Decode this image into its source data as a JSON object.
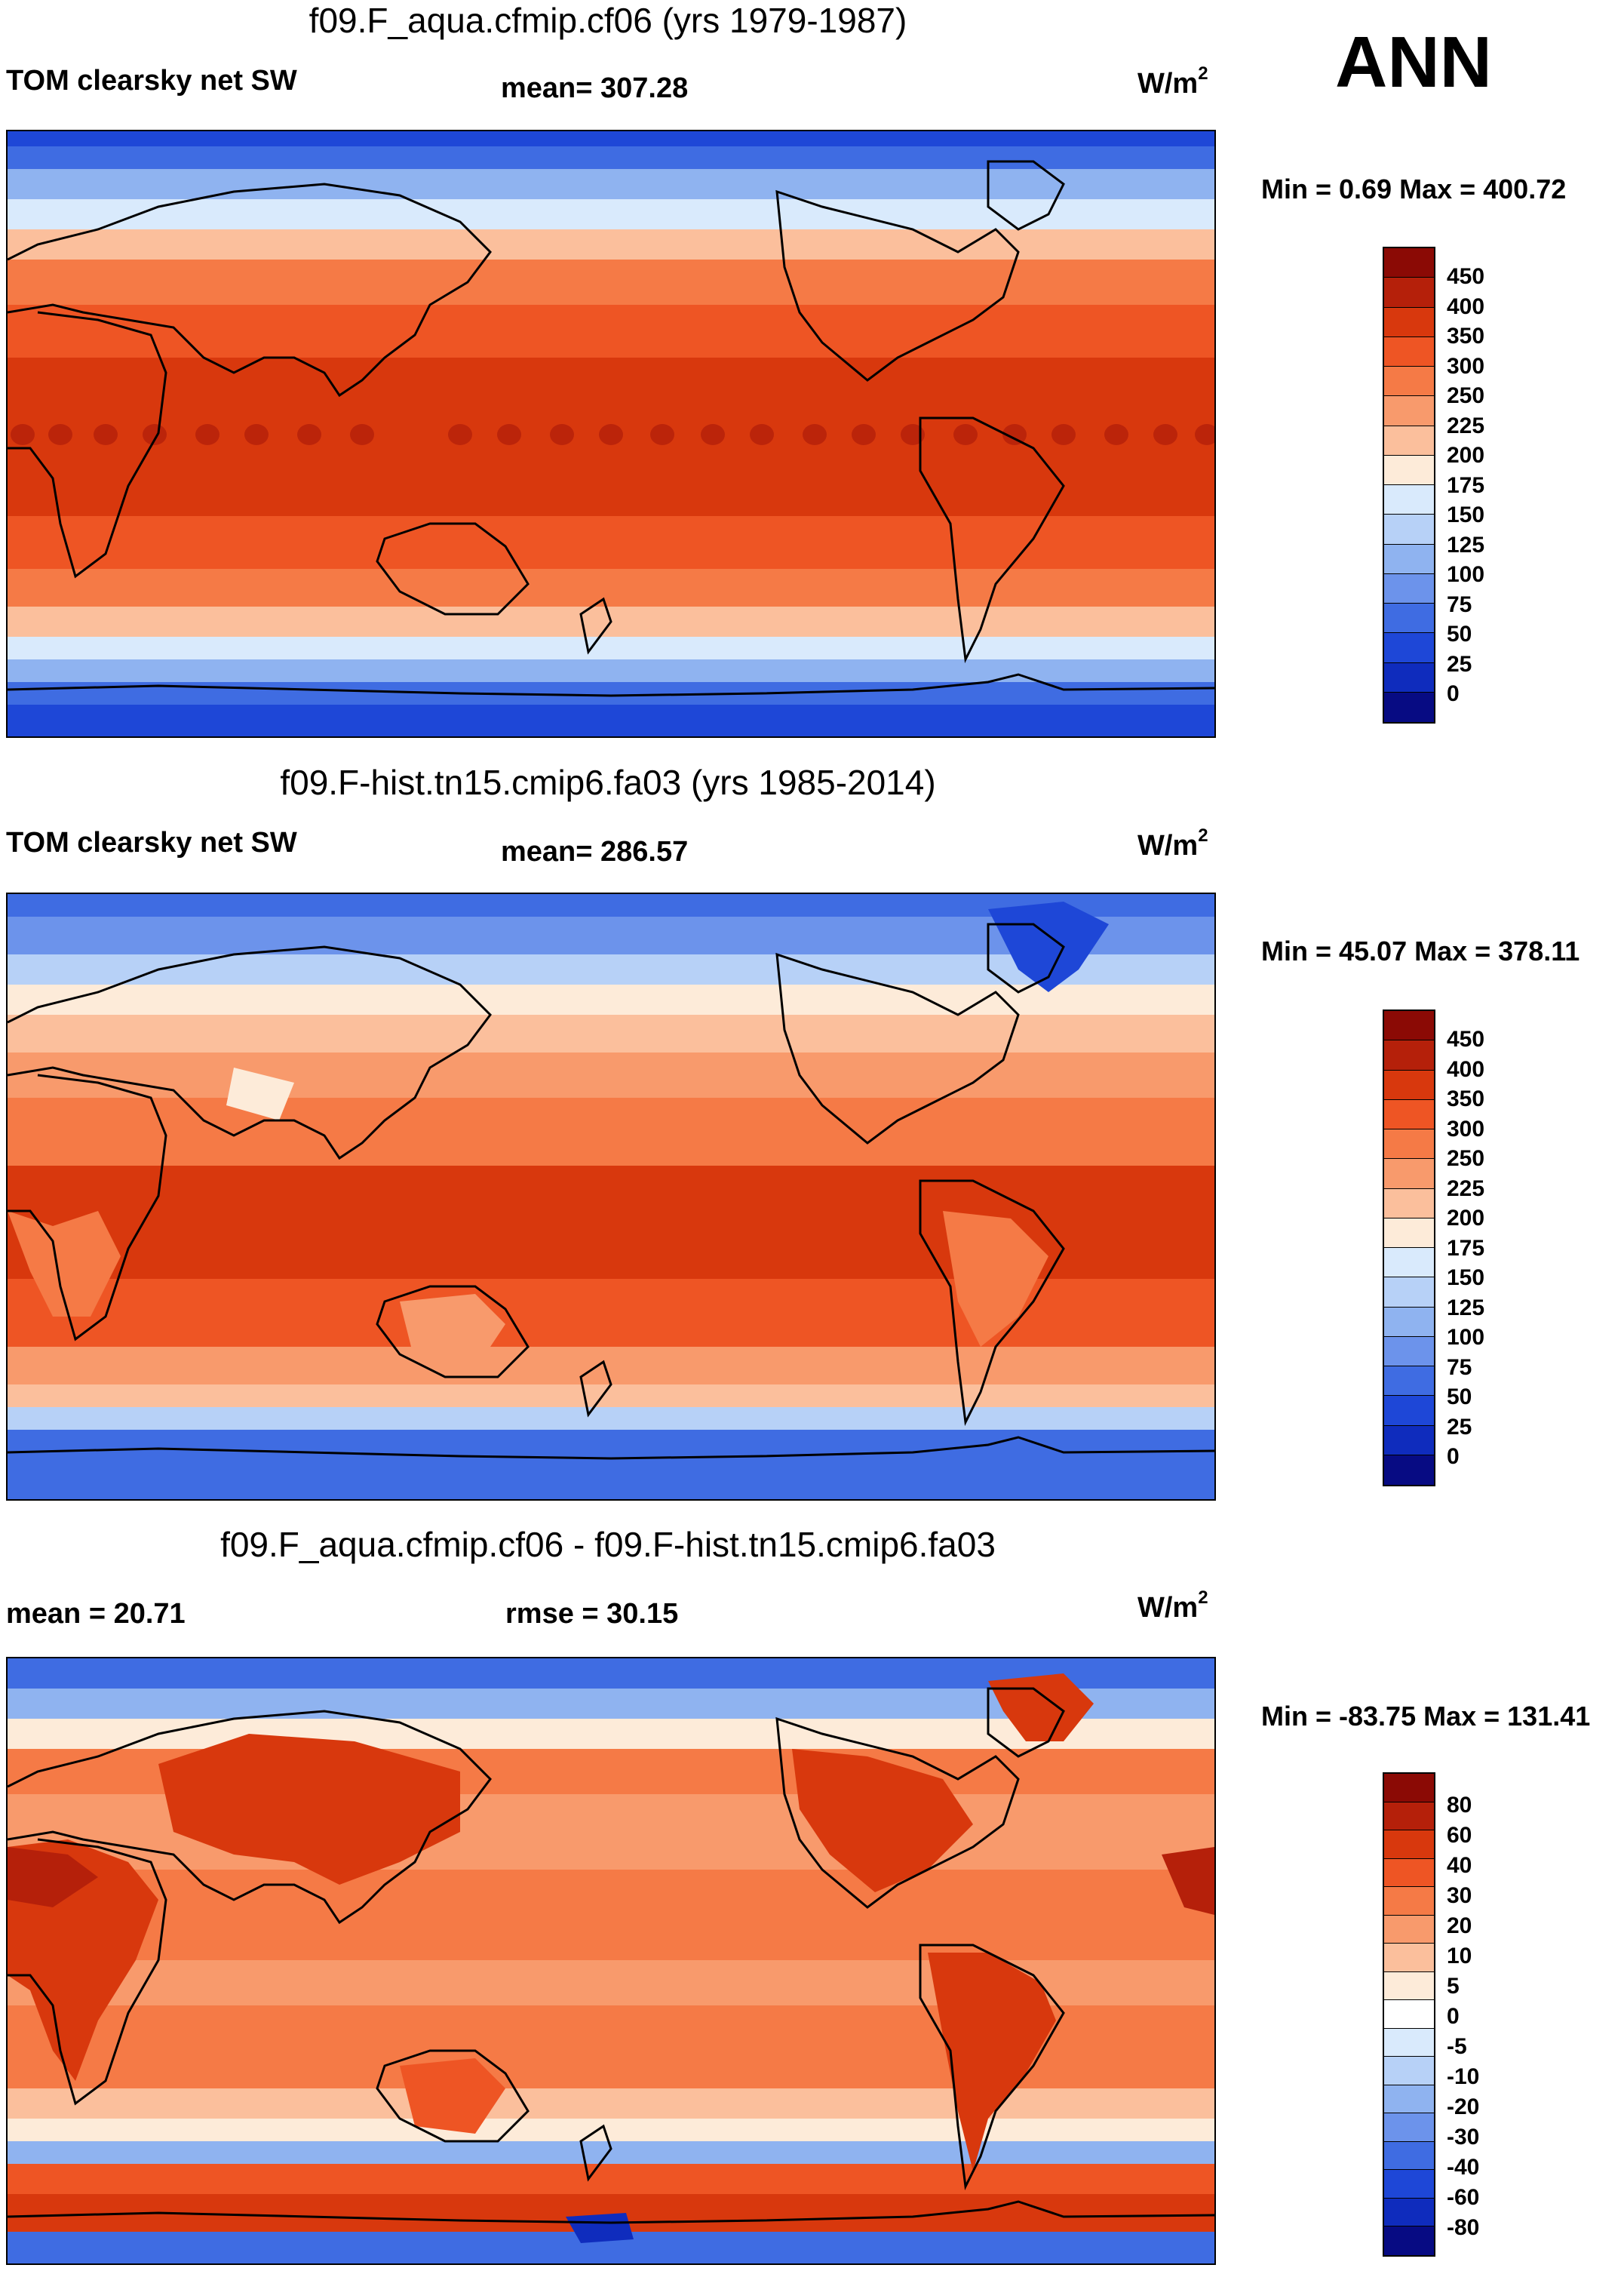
{
  "season": "ANN",
  "units_prefix": "W/m",
  "units_exp": "2",
  "panels": [
    {
      "title": "f09.F_aqua.cfmip.cf06 (yrs 1979-1987)",
      "left_label": "TOM clearsky net SW",
      "center_label": "mean= 307.28",
      "minmax": "Min =   0.69 Max = 400.72"
    },
    {
      "title": "f09.F-hist.tn15.cmip6.fa03 (yrs 1985-2014)",
      "left_label": "TOM clearsky net SW",
      "center_label": "mean= 286.57",
      "minmax": "Min =  45.07 Max = 378.11"
    },
    {
      "title": "f09.F_aqua.cfmip.cf06 - f09.F-hist.tn15.cmip6.fa03",
      "left_label": "mean =  20.71",
      "center_label": "rmse =  30.15",
      "minmax": "Min = -83.75 Max = 131.41"
    }
  ],
  "colors": {
    "abs_scale": [
      "#8b0a05",
      "#b5200a",
      "#d8380d",
      "#ee5524",
      "#f57a46",
      "#f89a6c",
      "#fbbf9c",
      "#fdebd9",
      "#d9eafc",
      "#b7d1f7",
      "#8fb3f0",
      "#6c93eb",
      "#3f6ce2",
      "#1e47d7",
      "#0f2cbd",
      "#070b83"
    ],
    "diff_scale": [
      "#8b0a05",
      "#b5200a",
      "#d8380d",
      "#ee5524",
      "#f57a46",
      "#f89a6c",
      "#fbbf9c",
      "#fdebd9",
      "#ffffff",
      "#d9eafc",
      "#b7d1f7",
      "#8fb3f0",
      "#6c93eb",
      "#3f6ce2",
      "#1e47d7",
      "#0f2cbd",
      "#070b83"
    ]
  },
  "chart_data": [
    {
      "type": "heatmap",
      "title": "f09.F_aqua.cfmip.cf06 (yrs 1979-1987)",
      "variable": "TOM clearsky net SW",
      "units": "W/m2",
      "mean": 307.28,
      "min": 0.69,
      "max": 400.72,
      "colorbar_levels": [
        450,
        400,
        350,
        300,
        250,
        225,
        200,
        175,
        150,
        125,
        100,
        75,
        50,
        25,
        0
      ],
      "zonal_profile": {
        "lat": [
          90,
          75,
          60,
          45,
          30,
          15,
          0,
          -15,
          -30,
          -45,
          -60,
          -75,
          -90
        ],
        "value": [
          10,
          90,
          170,
          245,
          310,
          355,
          370,
          355,
          310,
          245,
          170,
          90,
          10
        ]
      }
    },
    {
      "type": "heatmap",
      "title": "f09.F-hist.tn15.cmip6.fa03 (yrs 1985-2014)",
      "variable": "TOM clearsky net SW",
      "units": "W/m2",
      "mean": 286.57,
      "min": 45.07,
      "max": 378.11,
      "colorbar_levels": [
        450,
        400,
        350,
        300,
        250,
        225,
        200,
        175,
        150,
        125,
        100,
        75,
        50,
        25,
        0
      ],
      "zonal_profile": {
        "lat": [
          90,
          75,
          60,
          45,
          30,
          15,
          0,
          -15,
          -30,
          -45,
          -60,
          -75,
          -90
        ],
        "value": [
          60,
          110,
          160,
          230,
          290,
          335,
          350,
          335,
          290,
          230,
          140,
          75,
          50
        ]
      }
    },
    {
      "type": "heatmap",
      "title": "f09.F_aqua.cfmip.cf06 - f09.F-hist.tn15.cmip6.fa03",
      "variable": "difference",
      "units": "W/m2",
      "mean": 20.71,
      "rmse": 30.15,
      "min": -83.75,
      "max": 131.41,
      "colorbar_levels": [
        80,
        60,
        40,
        30,
        20,
        10,
        5,
        0,
        -5,
        -10,
        -20,
        -30,
        -40,
        -60,
        -80
      ],
      "zonal_profile": {
        "lat": [
          90,
          75,
          60,
          45,
          30,
          15,
          0,
          -15,
          -30,
          -45,
          -60,
          -75,
          -90
        ],
        "value": [
          -40,
          -20,
          15,
          25,
          30,
          25,
          20,
          25,
          25,
          20,
          35,
          60,
          -40
        ]
      }
    }
  ]
}
